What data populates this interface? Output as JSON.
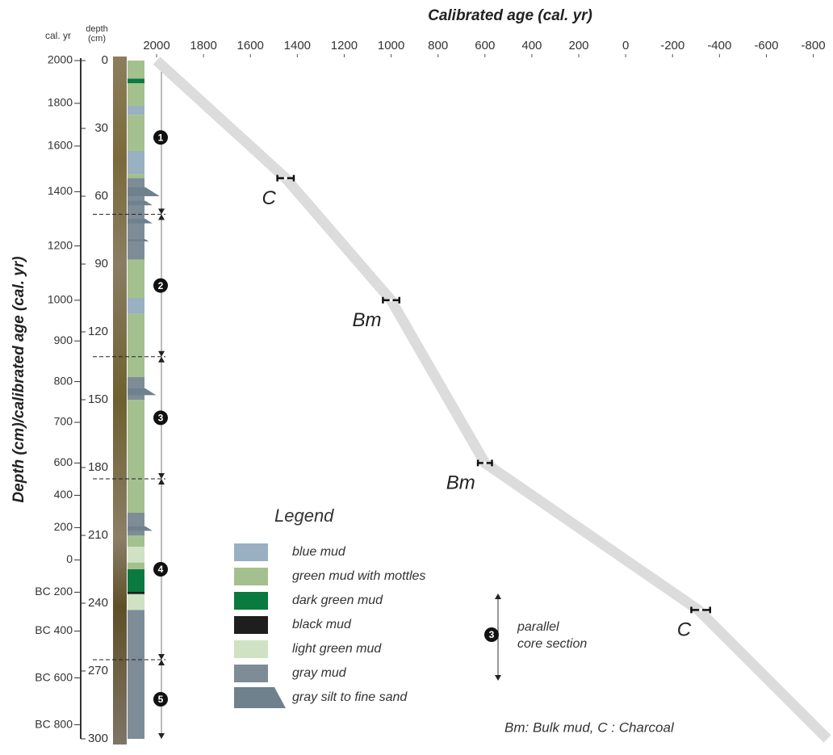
{
  "chart_data": {
    "type": "age-depth",
    "title": "Calibrated age (cal. yr)",
    "y_title": "Depth (cm)/calibrated age (cal. yr)",
    "cal_axis_label": "cal. yr",
    "depth_axis_label": [
      "depth",
      "(cm)"
    ],
    "xlim": [
      2000,
      -860
    ],
    "xticks": [
      2000,
      1800,
      1600,
      1400,
      1200,
      1000,
      800,
      600,
      400,
      200,
      0,
      -200,
      -400,
      -600,
      -800
    ],
    "ylim": [
      0,
      300
    ],
    "yticks": [
      0,
      30,
      60,
      90,
      120,
      150,
      180,
      210,
      240,
      270,
      300
    ],
    "cal_ticks": [
      2000,
      1800,
      1600,
      1400,
      1200,
      1000,
      900,
      800,
      700,
      600,
      400,
      200,
      0,
      {
        "value": -200,
        "label": "BC 200"
      },
      {
        "value": -400,
        "label": "BC 400"
      },
      {
        "value": -600,
        "label": "BC 600"
      },
      {
        "value": -800,
        "label": "BC 800"
      }
    ],
    "model": {
      "depth": [
        0,
        52,
        106,
        178,
        243,
        300
      ],
      "age": [
        2000,
        1450,
        1000,
        600,
        -310,
        -860
      ],
      "color": "#dcdcdc"
    },
    "dates": {
      "labels": [
        "C",
        "Bm",
        "Bm",
        "C"
      ],
      "age": [
        1450,
        1000,
        600,
        -320
      ],
      "error": [
        35,
        35,
        30,
        40
      ],
      "depth": [
        52,
        106,
        178,
        243
      ]
    },
    "sections": {
      "labels": [
        "1",
        "2",
        "3",
        "4",
        "5"
      ],
      "boundaries": [
        0,
        68,
        131,
        185,
        265,
        300
      ]
    },
    "legend": {
      "title": "Legend",
      "items": [
        {
          "label": "blue mud",
          "color": "#98b0c2",
          "intervals": [
            [
              20,
              24
            ],
            [
              40,
              50
            ],
            [
              105,
              112
            ]
          ]
        },
        {
          "label": "green mud with mottles",
          "color": "#a4c08e",
          "intervals": [
            [
              0,
              8
            ],
            [
              10,
              20
            ],
            [
              24,
              40
            ],
            [
              50,
              52
            ],
            [
              88,
              105
            ],
            [
              112,
              140
            ],
            [
              150,
              200
            ],
            [
              210,
              215
            ],
            [
              222,
              225
            ]
          ]
        },
        {
          "label": "dark green mud",
          "color": "#0a7a3e",
          "intervals": [
            [
              8,
              10
            ],
            [
              225,
              235
            ]
          ]
        },
        {
          "label": "black mud",
          "color": "#1e1e1e",
          "intervals": [
            [
              235,
              236
            ]
          ]
        },
        {
          "label": "light green mud",
          "color": "#cfe3c4",
          "intervals": [
            [
              215,
              222
            ],
            [
              236,
              243
            ]
          ]
        },
        {
          "label": "gray mud",
          "color": "#7e8c98",
          "intervals": [
            [
              52,
              88
            ],
            [
              140,
              150
            ],
            [
              200,
              210
            ],
            [
              243,
              300
            ]
          ]
        },
        {
          "label": "gray silt to fine sand",
          "color": "#6f818d",
          "intervals": [
            [
              56,
              60
            ],
            [
              62,
              64
            ],
            [
              70,
              72
            ],
            [
              79,
              80
            ],
            [
              145,
              148
            ],
            [
              206,
              208
            ]
          ]
        }
      ]
    },
    "parallel_section": {
      "label": "3",
      "text": [
        "parallel",
        "core section"
      ]
    },
    "note": "Bm: Bulk mud, C : Charcoal"
  }
}
